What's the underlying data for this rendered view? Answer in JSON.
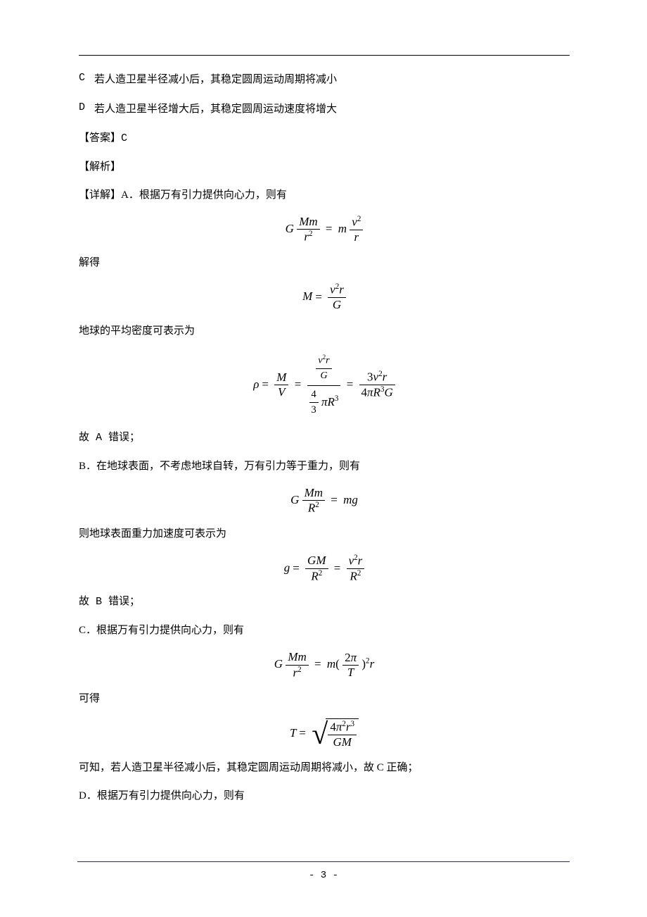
{
  "options": {
    "C": {
      "label": "C",
      "text": "若人造卫星半径减小后，其稳定圆周运动周期将减小"
    },
    "D": {
      "label": "D",
      "text": "若人造卫星半径增大后，其稳定圆周运动速度将增大"
    }
  },
  "answer_line": "【答案】C",
  "analysis_label": "【解析】",
  "detail_intro": "【详解】A．根据万有引力提供向心力，则有",
  "text_jiedé": "解得",
  "text_density": "地球的平均密度可表示为",
  "text_A_wrong": "故 A 错误；",
  "text_B_intro": "B．在地球表面，不考虑地球自转，万有引力等于重力，则有",
  "text_earth_g": "则地球表面重力加速度可表示为",
  "text_B_wrong": "故 B 错误；",
  "text_C_intro": "C．根据万有引力提供向心力，则有",
  "text_kede": "可得",
  "text_C_correct": "可知，若人造卫星半径减小后，其稳定圆周运动周期将减小，故 C 正确；",
  "text_D_intro": "D．根据万有引力提供向心力，则有",
  "page_number": "- 3 -"
}
